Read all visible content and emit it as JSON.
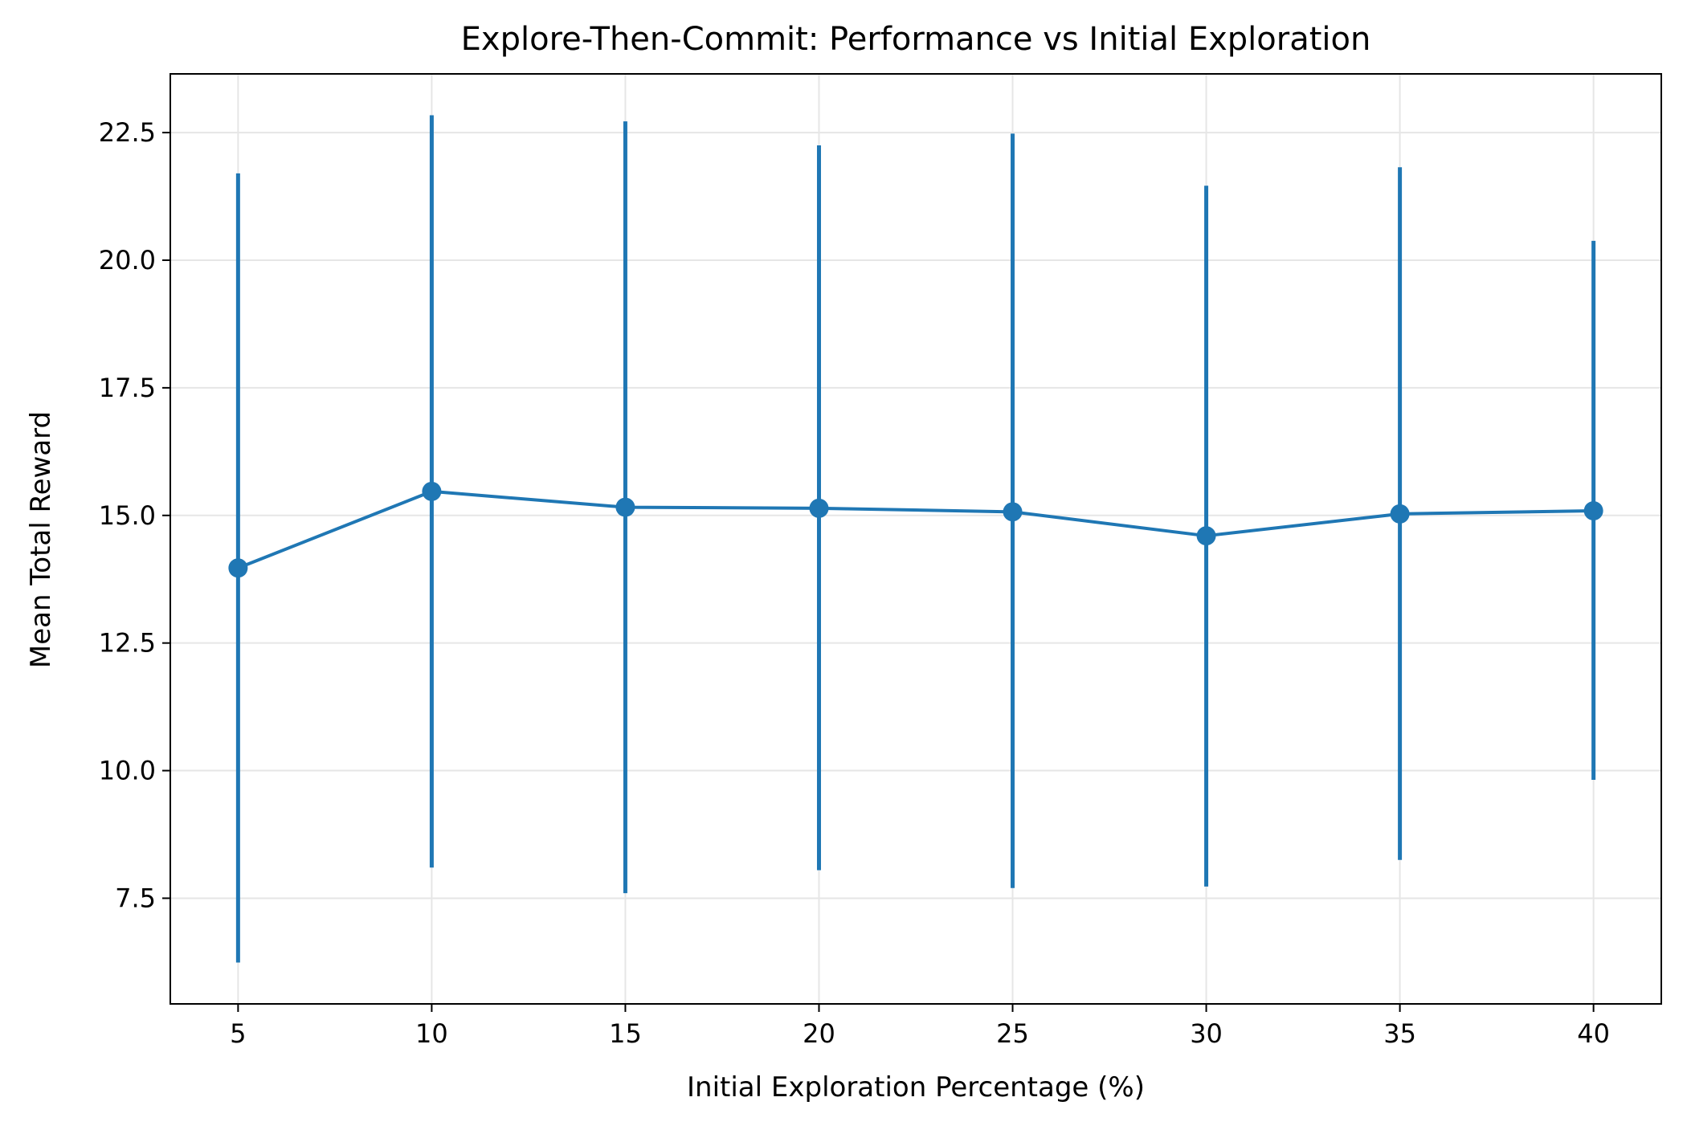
{
  "chart_data": {
    "type": "line",
    "title": "Explore-Then-Commit: Performance vs Initial Exploration",
    "xlabel": "Initial Exploration Percentage (%)",
    "ylabel": "Mean Total Reward",
    "x": [
      5,
      10,
      15,
      20,
      25,
      30,
      35,
      40
    ],
    "series": [
      {
        "values": [
          13.97,
          15.47,
          15.16,
          15.14,
          15.07,
          14.6,
          15.03,
          15.09
        ],
        "error_low": [
          6.24,
          8.1,
          7.6,
          8.05,
          7.7,
          7.73,
          8.25,
          9.82
        ],
        "error_high": [
          21.7,
          22.84,
          22.72,
          22.25,
          22.48,
          21.46,
          21.82,
          20.38
        ],
        "color": "#1f77b4",
        "marker": "circle"
      }
    ],
    "xticks": [
      "5",
      "10",
      "15",
      "20",
      "25",
      "30",
      "35",
      "40"
    ],
    "yticks": [
      "7.5",
      "10.0",
      "12.5",
      "15.0",
      "17.5",
      "20.0",
      "22.5"
    ],
    "ytick_values": [
      7.5,
      10.0,
      12.5,
      15.0,
      17.5,
      20.0,
      22.5
    ],
    "xlim": [
      3.25,
      41.75
    ],
    "ylim": [
      5.43,
      23.65
    ],
    "grid": true,
    "grid_color": "#e6e6e6",
    "line_color": "#1f77b4"
  }
}
